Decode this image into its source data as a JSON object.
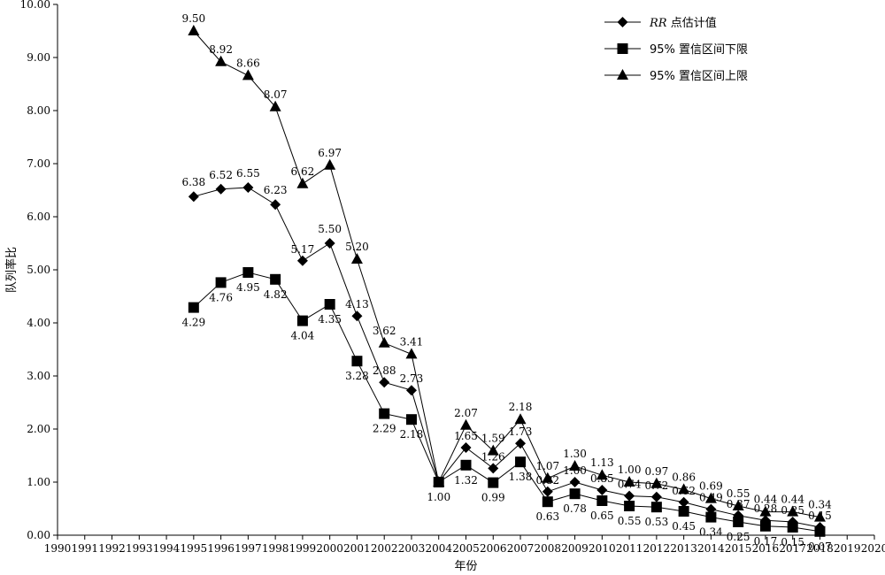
{
  "chart_data": {
    "type": "line",
    "xlabel": "年份",
    "ylabel": "队列率比",
    "xlim": [
      1990,
      2020
    ],
    "ylim": [
      0,
      10
    ],
    "x_ticks": [
      1990,
      1991,
      1992,
      1993,
      1994,
      1995,
      1996,
      1997,
      1998,
      1999,
      2000,
      2001,
      2002,
      2003,
      2004,
      2005,
      2006,
      2007,
      2008,
      2009,
      2010,
      2011,
      2012,
      2013,
      2014,
      2015,
      2016,
      2017,
      2018,
      2019,
      2020
    ],
    "y_ticks": [
      "0.00",
      "1.00",
      "2.00",
      "3.00",
      "4.00",
      "5.00",
      "6.00",
      "7.00",
      "8.00",
      "9.00",
      "10.00"
    ],
    "grid": false,
    "legend_position": "top-right",
    "x": [
      1995,
      1996,
      1997,
      1998,
      1999,
      2000,
      2001,
      2002,
      2003,
      2004,
      2005,
      2006,
      2007,
      2008,
      2009,
      2010,
      2011,
      2012,
      2013,
      2014,
      2015,
      2016,
      2017,
      2018
    ],
    "series": [
      {
        "name": "RR 点估计值",
        "marker": "diamond",
        "values": [
          6.38,
          6.52,
          6.55,
          6.23,
          5.17,
          5.5,
          4.13,
          2.88,
          2.73,
          1.0,
          1.65,
          1.26,
          1.73,
          0.82,
          1.0,
          0.85,
          0.74,
          0.72,
          0.62,
          0.49,
          0.37,
          0.28,
          0.25,
          0.15
        ],
        "labels": [
          "6.38",
          "6.52",
          "6.55",
          "6.23",
          "5.17",
          "5.50",
          "4.13",
          "2.88",
          "2.73",
          "",
          "1.65",
          "1.26",
          "1.73",
          "0.82",
          "1.00",
          "0.85",
          "0.74",
          "0.72",
          "0.62",
          "0.49",
          "0.37",
          "0.28",
          "0.25",
          "0.15"
        ]
      },
      {
        "name": "95% 置信区间下限",
        "marker": "square",
        "values": [
          4.29,
          4.76,
          4.95,
          4.82,
          4.04,
          4.35,
          3.28,
          2.29,
          2.18,
          1.0,
          1.32,
          0.99,
          1.38,
          0.63,
          0.78,
          0.65,
          0.55,
          0.53,
          0.45,
          0.34,
          0.25,
          0.17,
          0.15,
          0.07
        ],
        "labels": [
          "4.29",
          "4.76",
          "4.95",
          "4.82",
          "4.04",
          "4.35",
          "3.28",
          "2.29",
          "2.18",
          "1.00",
          "1.32",
          "0.99",
          "1.38",
          "0.63",
          "0.78",
          "0.65",
          "0.55",
          "0.53",
          "0.45",
          "0.34",
          "0.25",
          "0.17",
          "0.15",
          "0.07"
        ]
      },
      {
        "name": "95% 置信区间上限",
        "marker": "triangle",
        "values": [
          9.5,
          8.92,
          8.66,
          8.07,
          6.62,
          6.97,
          5.2,
          3.62,
          3.41,
          1.0,
          2.07,
          1.59,
          2.18,
          1.07,
          1.3,
          1.13,
          1.0,
          0.97,
          0.86,
          0.69,
          0.55,
          0.44,
          0.44,
          0.34
        ],
        "labels": [
          "9.50",
          "8.92",
          "8.66",
          "8.07",
          "6.62",
          "6.97",
          "5.20",
          "3.62",
          "3.41",
          "",
          "2.07",
          "1.59",
          "2.18",
          "1.07",
          "1.30",
          "1.13",
          "1.00",
          "0.97",
          "0.86",
          "0.69",
          "0.55",
          "0.44",
          "0.44",
          "0.34"
        ]
      }
    ],
    "legend": {
      "rr_italic": "RR",
      "rr_rest": " 点估计值",
      "lower": "95% 置信区间下限",
      "upper": "95% 置信区间上限"
    }
  }
}
